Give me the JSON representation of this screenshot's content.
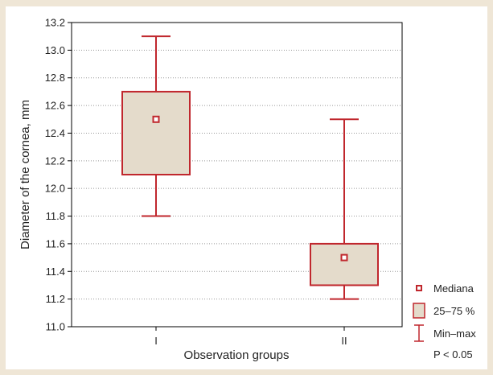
{
  "chart_data": {
    "type": "boxplot",
    "xlabel": "Observation groups",
    "ylabel": "Diameter of the cornea, mm",
    "ylim": [
      11.0,
      13.2
    ],
    "yticks": [
      "11.0",
      "11.2",
      "11.4",
      "11.6",
      "11.8",
      "12.0",
      "12.2",
      "12.4",
      "12.6",
      "12.8",
      "13.0",
      "13.2"
    ],
    "grid": "horizontal dotted",
    "legend_position": "bottom-right",
    "categories": [
      "I",
      "II"
    ],
    "series": [
      {
        "group": "I",
        "min": 11.8,
        "q1": 12.1,
        "median": 12.5,
        "q3": 12.7,
        "max": 13.1
      },
      {
        "group": "II",
        "min": 11.2,
        "q1": 11.3,
        "median": 11.5,
        "q3": 11.6,
        "max": 12.5
      }
    ],
    "legend": [
      {
        "label": "Mediana",
        "symbol": "median-square"
      },
      {
        "label": "25–75 %",
        "symbol": "box"
      },
      {
        "label": "Min–max",
        "symbol": "whisker"
      }
    ],
    "annotation": "P < 0.05",
    "colors": {
      "box_fill": "#e4dbcb",
      "stroke": "#c0272d",
      "background": "#efe6d6",
      "grid": "#999999"
    }
  }
}
